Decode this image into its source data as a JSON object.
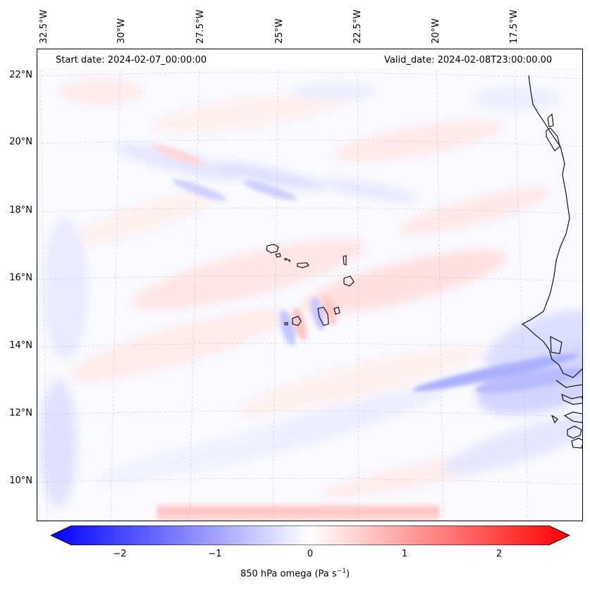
{
  "header": {
    "start_date": "Start date: 2024-02-07_00:00:00",
    "valid_date": "Valid_date: 2024-02-08T23:00:00.00"
  },
  "axes": {
    "longitude_labels": [
      "32.5°W",
      "30°W",
      "27.5°W",
      "25°W",
      "22.5°W",
      "20°W",
      "17.5°W"
    ],
    "latitude_labels": [
      "22°N",
      "20°N",
      "18°N",
      "16°N",
      "14°N",
      "12°N",
      "10°N"
    ]
  },
  "colorbar": {
    "ticks": [
      "−2",
      "−1",
      "0",
      "1",
      "2"
    ],
    "min": -2.5,
    "max": 2.5,
    "extend": "both",
    "colormap": "bwr",
    "label_prefix": "850 hPa omega (Pa s",
    "label_exp": "−1",
    "label_suffix": ")"
  },
  "colors": {
    "negative": "#0000ff",
    "neutral": "#ffffff",
    "positive": "#ff0000",
    "coastline": "#000000"
  }
}
